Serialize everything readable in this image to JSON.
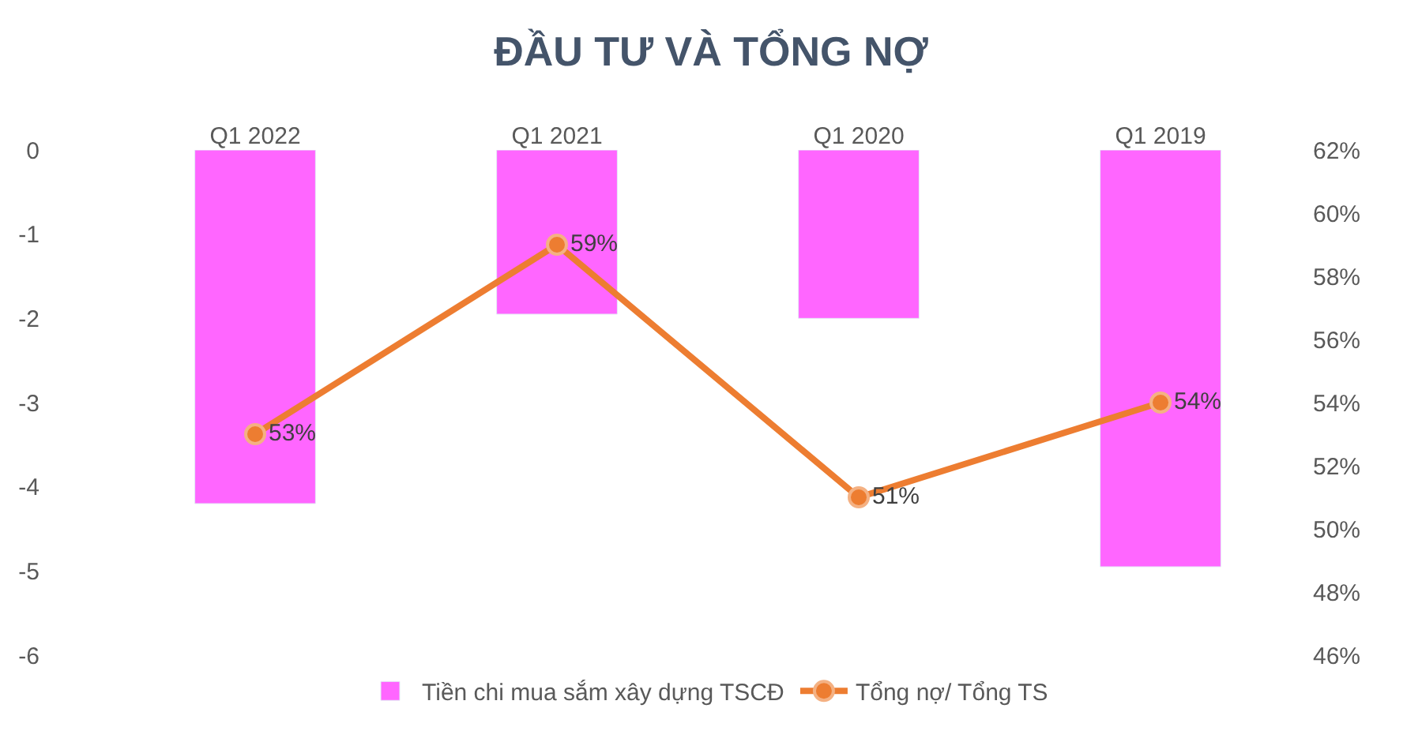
{
  "chart_data": {
    "type": "bar",
    "title": "ĐẦU TƯ VÀ TỔNG NỢ",
    "categories": [
      "Q1 2022",
      "Q1 2021",
      "Q1 2020",
      "Q1 2019"
    ],
    "series": [
      {
        "name": "Tiền chi mua sắm xây dựng TSCĐ",
        "color": "#ff66ff",
        "values": [
          -4.2,
          -1.95,
          -2.0,
          -4.95
        ]
      },
      {
        "name": "Tổng nợ/ Tổng TS",
        "type": "line",
        "axis": "y2",
        "color": "#ed7d31",
        "values": [
          53,
          59,
          51,
          54
        ],
        "value_labels": [
          "53%",
          "59%",
          "51%",
          "54%"
        ],
        "marker": "circle",
        "line_style": "solid"
      }
    ],
    "ylim": [
      -6,
      0
    ],
    "yticks": [
      0,
      -1,
      -2,
      -3,
      -4,
      -5,
      -6
    ],
    "y2lim": [
      46,
      62
    ],
    "y2ticks": [
      {
        "value": 46,
        "label": "46%"
      },
      {
        "value": 48,
        "label": "48%"
      },
      {
        "value": 50,
        "label": "50%"
      },
      {
        "value": 52,
        "label": "52%"
      },
      {
        "value": 54,
        "label": "54%"
      },
      {
        "value": 56,
        "label": "56%"
      },
      {
        "value": 58,
        "label": "58%"
      },
      {
        "value": 60,
        "label": "60%"
      },
      {
        "value": 62,
        "label": "62%"
      }
    ],
    "legend": "bottom"
  }
}
